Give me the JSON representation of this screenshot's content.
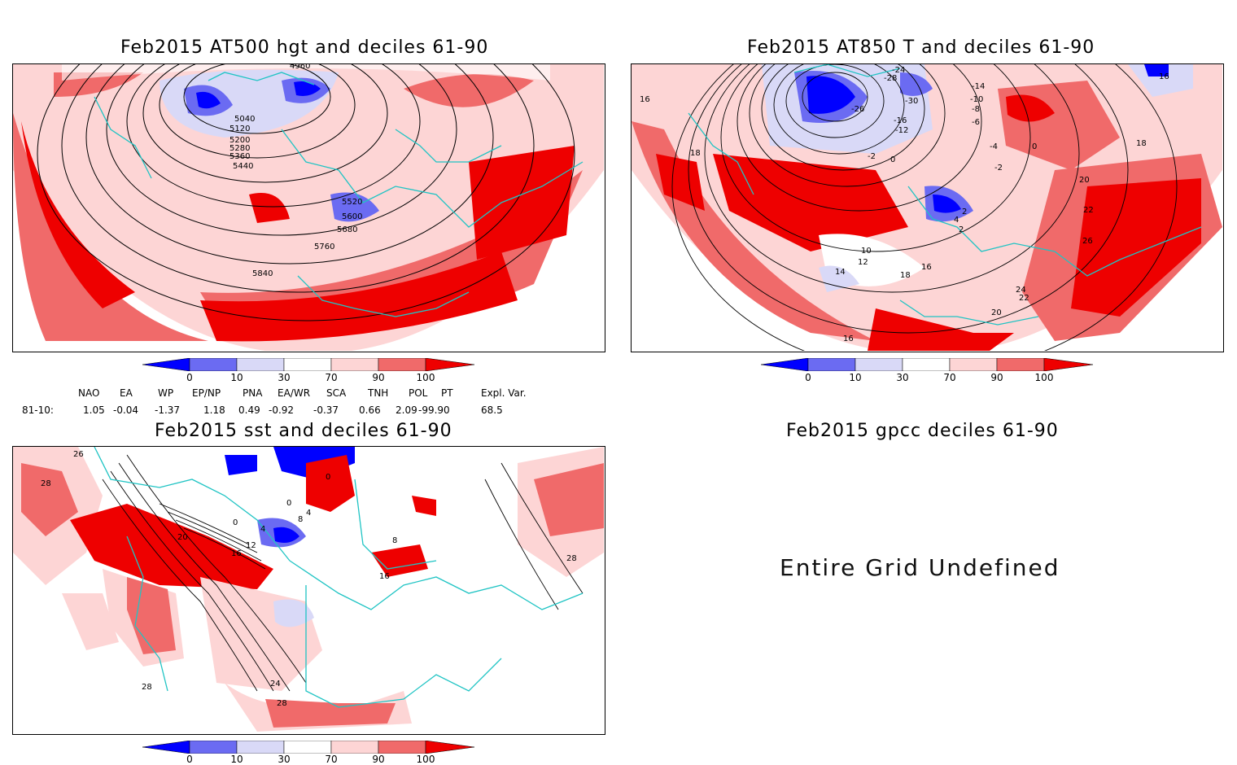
{
  "panels": {
    "p1": {
      "title": "Feb2015 AT500 hgt and deciles 61-90",
      "contour_labels": [
        "4960",
        "5040",
        "5120",
        "5200",
        "5280",
        "5360",
        "5440",
        "5520",
        "5600",
        "5680",
        "5760",
        "5840"
      ]
    },
    "p2": {
      "title": "Feb2015 AT850 T and deciles 61-90",
      "contour_labels": [
        "-28",
        "-26",
        "-24",
        "-30",
        "-16",
        "-14",
        "-12",
        "-10",
        "-8",
        "-6",
        "-4",
        "-2",
        "0",
        "2",
        "4",
        "10",
        "12",
        "14",
        "16",
        "18",
        "20",
        "22",
        "24",
        "26",
        "16",
        "18",
        "16"
      ]
    },
    "p3": {
      "title": "Feb2015 sst and deciles 61-90",
      "contour_labels": [
        "26",
        "28",
        "0",
        "0",
        "4",
        "8",
        "12",
        "16",
        "20",
        "24",
        "28",
        "28",
        "28",
        "16",
        "8"
      ]
    },
    "p4": {
      "title": "Feb2015 gpcc deciles 61-90",
      "message": "Entire Grid Undefined"
    }
  },
  "colorbar": {
    "labels": [
      "0",
      "10",
      "30",
      "70",
      "90",
      "100"
    ],
    "colors": [
      "#0000ff",
      "#6b6bf2",
      "#d9d9f7",
      "#ffffff",
      "#fdd5d5",
      "#f06a6a",
      "#ee0000"
    ]
  },
  "indices": {
    "row_label": "81-10:",
    "names": [
      "NAO",
      "EA",
      "WP",
      "EP/NP",
      "PNA",
      "EA/WR",
      "SCA",
      "TNH",
      "POL",
      "PT",
      "Expl. Var."
    ],
    "values": [
      "1.05",
      "-0.04",
      "-1.37",
      "1.18",
      "0.49",
      "-0.92",
      "-0.37",
      "0.66",
      "2.09",
      "-99.90",
      "68.5"
    ]
  },
  "colors": {
    "coast": "#20c4c4",
    "deep_red": "#ee0000",
    "mid_red": "#f06a6a",
    "light_red": "#fdd5d5",
    "light_blue": "#d9d9f7",
    "mid_blue": "#6b6bf2",
    "deep_blue": "#0000ff"
  }
}
